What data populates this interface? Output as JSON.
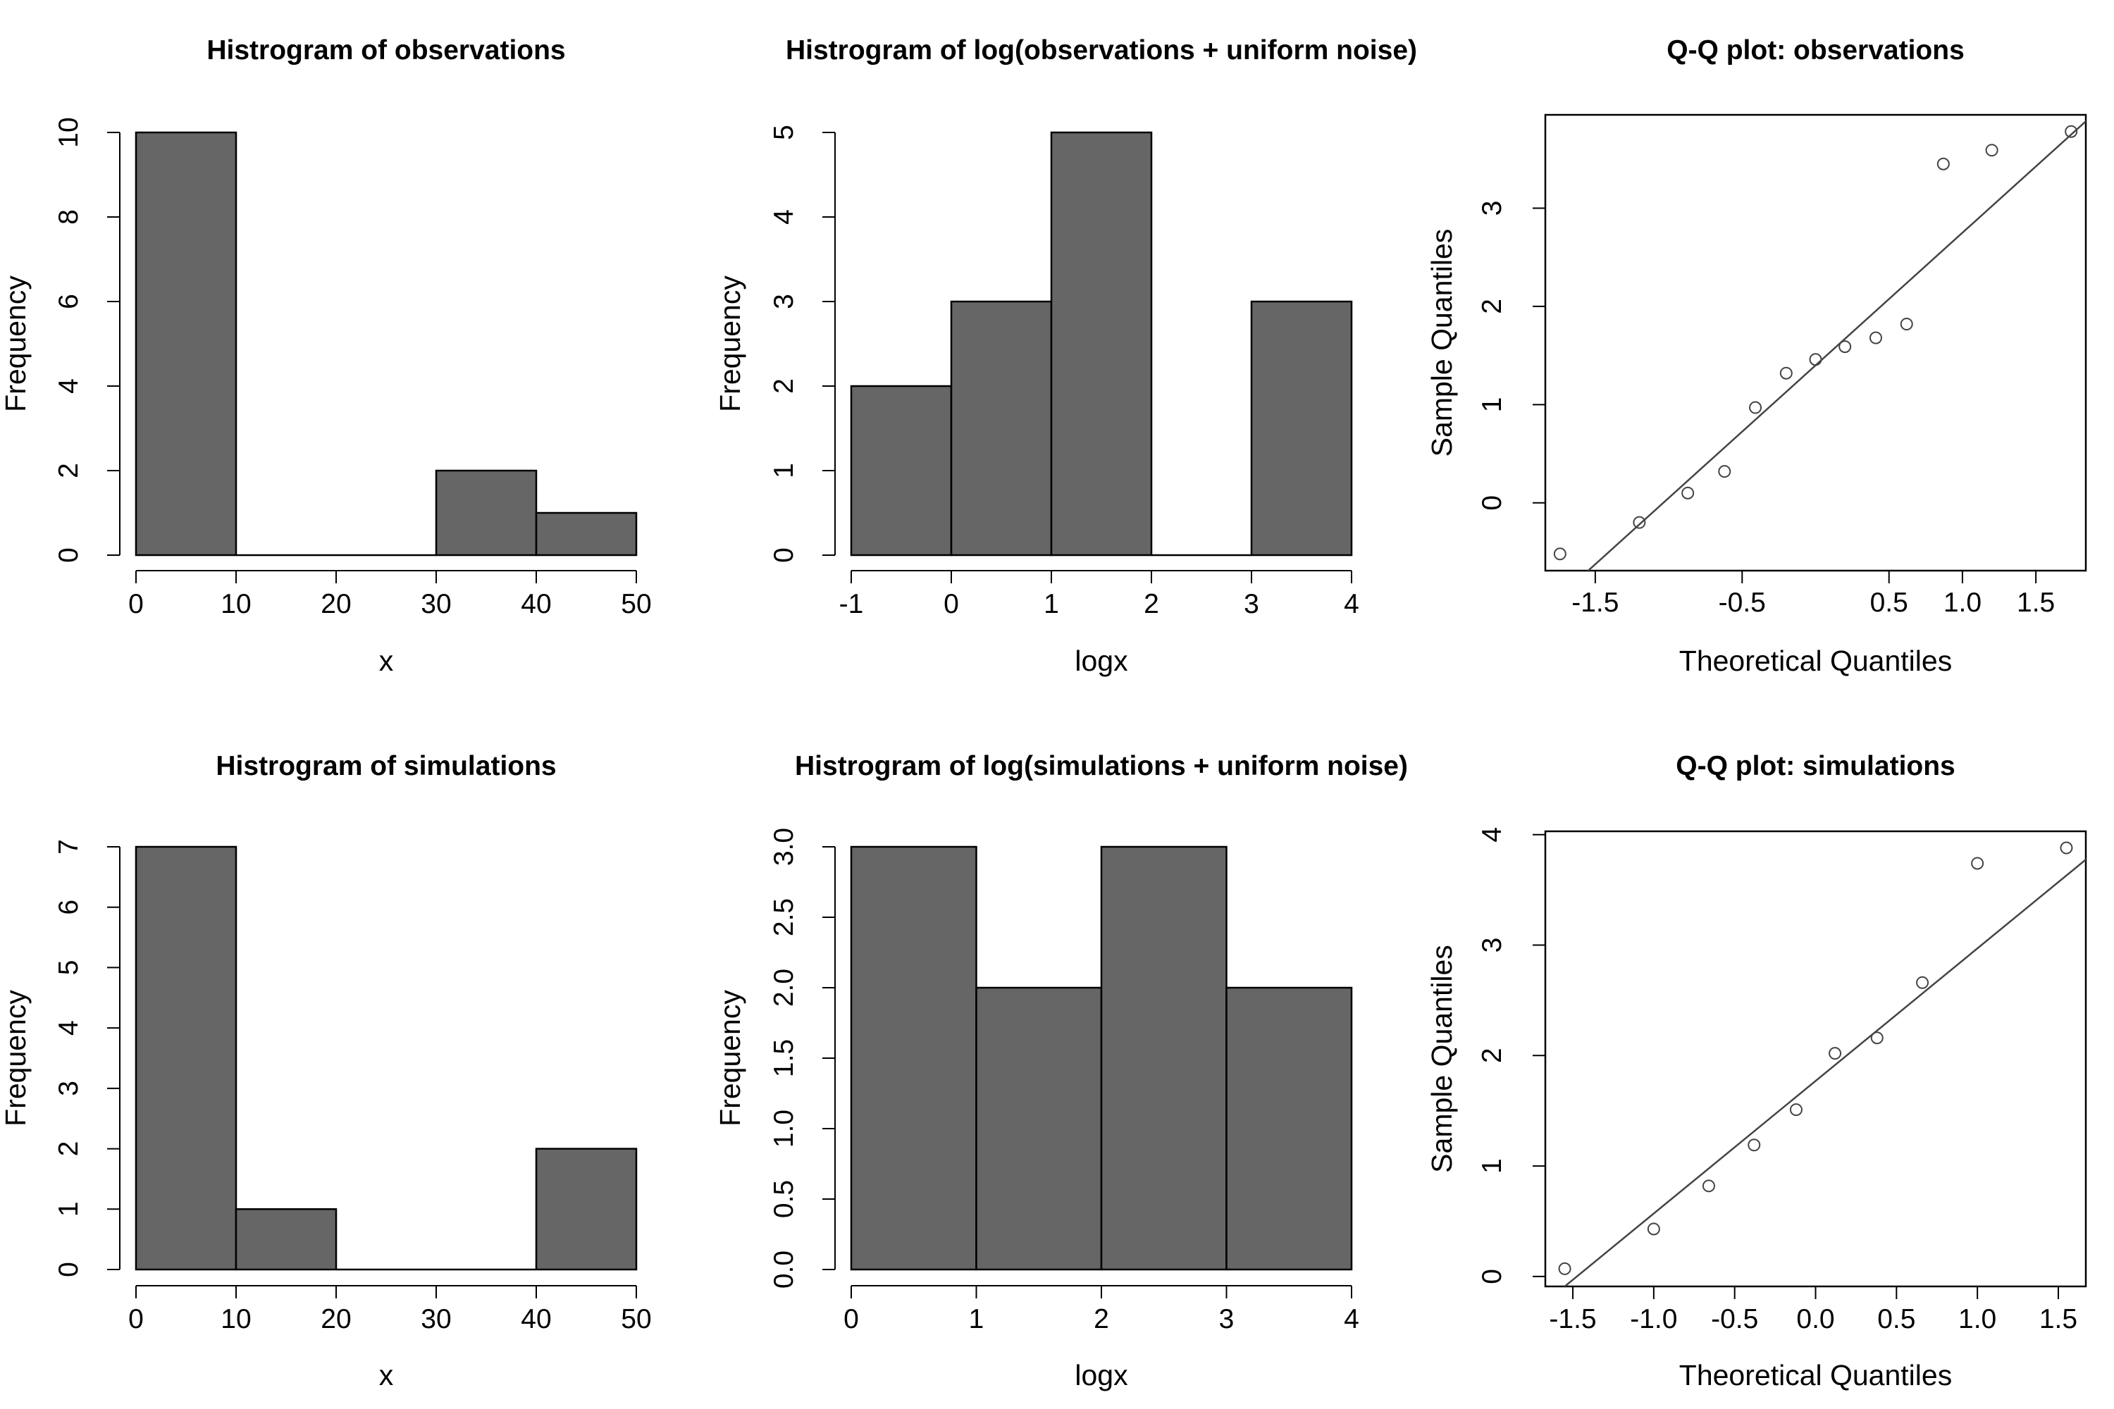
{
  "colors": {
    "bar_fill": "#666666",
    "stroke": "#000000",
    "line": "#444444",
    "background": "#ffffff"
  },
  "chart_data": [
    {
      "type": "bar",
      "title": "Histrogram of observations",
      "xlabel": "x",
      "ylabel": "Frequency",
      "bins": [
        [
          0,
          10
        ],
        [
          10,
          20
        ],
        [
          20,
          30
        ],
        [
          30,
          40
        ],
        [
          40,
          50
        ]
      ],
      "values": [
        10,
        0,
        0,
        2,
        1
      ],
      "xlim": [
        0,
        50
      ],
      "ylim": [
        0,
        10
      ],
      "xticks": [
        0,
        10,
        20,
        30,
        40,
        50
      ],
      "yticks": [
        0,
        2,
        4,
        6,
        8,
        10
      ],
      "grid": false
    },
    {
      "type": "bar",
      "title": "Histrogram of log(observations + uniform noise)",
      "xlabel": "logx",
      "ylabel": "Frequency",
      "bins": [
        [
          -1,
          0
        ],
        [
          0,
          1
        ],
        [
          1,
          2
        ],
        [
          2,
          3
        ],
        [
          3,
          4
        ]
      ],
      "values": [
        2,
        3,
        5,
        0,
        3
      ],
      "xlim": [
        -1,
        4
      ],
      "ylim": [
        0,
        5
      ],
      "xticks": [
        -1,
        0,
        1,
        2,
        3,
        4
      ],
      "yticks": [
        0,
        1,
        2,
        3,
        4,
        5
      ],
      "grid": false
    },
    {
      "type": "scatter",
      "title": "Q-Q plot: observations",
      "xlabel": "Theoretical Quantiles",
      "ylabel": "Sample Quantiles",
      "x": [
        -1.74,
        -1.2,
        -0.87,
        -0.62,
        -0.41,
        -0.2,
        0.0,
        0.2,
        0.41,
        0.62,
        0.87,
        1.2,
        1.74
      ],
      "y": [
        -0.52,
        -0.2,
        0.1,
        0.32,
        0.97,
        1.32,
        1.46,
        1.59,
        1.68,
        1.82,
        3.45,
        3.59,
        3.78
      ],
      "reference_line": {
        "intercept": 1.4,
        "slope": 1.35
      },
      "xlim": [
        -1.84,
        1.84
      ],
      "ylim": [
        -0.69,
        3.95
      ],
      "xticks": [
        "-1.5",
        "-0.5",
        "0.5",
        "1.0",
        "1.5"
      ],
      "xtick_values": [
        -1.5,
        -0.5,
        0.5,
        1.0,
        1.5
      ],
      "yticks": [
        0,
        1,
        2,
        3
      ],
      "grid": false
    },
    {
      "type": "bar",
      "title": "Histrogram of simulations",
      "xlabel": "x",
      "ylabel": "Frequency",
      "bins": [
        [
          0,
          10
        ],
        [
          10,
          20
        ],
        [
          20,
          30
        ],
        [
          30,
          40
        ],
        [
          40,
          50
        ]
      ],
      "values": [
        7,
        1,
        0,
        0,
        2
      ],
      "xlim": [
        0,
        50
      ],
      "ylim": [
        0,
        7
      ],
      "xticks": [
        0,
        10,
        20,
        30,
        40,
        50
      ],
      "yticks": [
        0,
        1,
        2,
        3,
        4,
        5,
        6,
        7
      ],
      "grid": false
    },
    {
      "type": "bar",
      "title": "Histrogram of log(simulations + uniform noise)",
      "xlabel": "logx",
      "ylabel": "Frequency",
      "bins": [
        [
          0,
          1
        ],
        [
          1,
          2
        ],
        [
          2,
          3
        ],
        [
          3,
          4
        ]
      ],
      "values": [
        3,
        2,
        3,
        2
      ],
      "xlim": [
        0,
        4
      ],
      "ylim": [
        0,
        3
      ],
      "xticks": [
        0,
        1,
        2,
        3,
        4
      ],
      "yticks": [
        "0.0",
        "0.5",
        "1.0",
        "1.5",
        "2.0",
        "2.5",
        "3.0"
      ],
      "ytick_values": [
        0,
        0.5,
        1.0,
        1.5,
        2.0,
        2.5,
        3.0
      ],
      "grid": false
    },
    {
      "type": "scatter",
      "title": "Q-Q plot: simulations",
      "xlabel": "Theoretical Quantiles",
      "ylabel": "Sample Quantiles",
      "x": [
        -1.55,
        -1.0,
        -0.66,
        -0.38,
        -0.12,
        0.12,
        0.38,
        0.66,
        1.0,
        1.55
      ],
      "y": [
        0.07,
        0.43,
        0.82,
        1.19,
        1.51,
        2.02,
        2.16,
        2.66,
        3.74,
        3.88
      ],
      "reference_line": {
        "intercept": 1.77,
        "slope": 1.2
      },
      "xlim": [
        -1.67,
        1.67
      ],
      "ylim": [
        -0.09,
        4.03
      ],
      "xticks": [
        "-1.5",
        "-1.0",
        "-0.5",
        "0.0",
        "0.5",
        "1.0",
        "1.5"
      ],
      "xtick_values": [
        -1.5,
        -1.0,
        -0.5,
        0.0,
        0.5,
        1.0,
        1.5
      ],
      "yticks": [
        0,
        1,
        2,
        3,
        4
      ],
      "grid": false
    }
  ]
}
